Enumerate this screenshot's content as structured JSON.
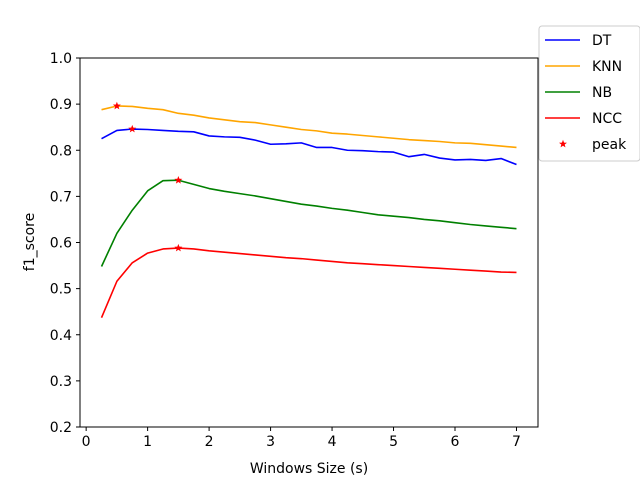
{
  "chart_data": {
    "type": "line",
    "title": "",
    "xlabel": "Windows Size (s)",
    "ylabel": "f1_score",
    "xlim": [
      -0.1,
      7.35
    ],
    "ylim": [
      0.2,
      1.0
    ],
    "xticks": [
      0,
      1,
      2,
      3,
      4,
      5,
      6,
      7
    ],
    "yticks": [
      0.2,
      0.3,
      0.4,
      0.5,
      0.6,
      0.7,
      0.8,
      0.9,
      1.0
    ],
    "xtick_labels": [
      "0",
      "1",
      "2",
      "3",
      "4",
      "5",
      "6",
      "7"
    ],
    "ytick_labels": [
      "0.2",
      "0.3",
      "0.4",
      "0.5",
      "0.6",
      "0.7",
      "0.8",
      "0.9",
      "1.0"
    ],
    "grid": false,
    "legend_position": "outside top-right",
    "x": [
      0.25,
      0.5,
      0.75,
      1.0,
      1.25,
      1.5,
      1.75,
      2.0,
      2.25,
      2.5,
      2.75,
      3.0,
      3.25,
      3.5,
      3.75,
      4.0,
      4.25,
      4.5,
      4.75,
      5.0,
      5.25,
      5.5,
      5.75,
      6.0,
      6.25,
      6.5,
      6.75,
      7.0
    ],
    "series": [
      {
        "name": "DT",
        "color": "#0000ff",
        "values": [
          0.825,
          0.843,
          0.846,
          0.845,
          0.843,
          0.841,
          0.84,
          0.831,
          0.829,
          0.828,
          0.822,
          0.813,
          0.814,
          0.816,
          0.806,
          0.806,
          0.8,
          0.799,
          0.797,
          0.796,
          0.786,
          0.791,
          0.783,
          0.779,
          0.78,
          0.778,
          0.782,
          0.769
        ]
      },
      {
        "name": "KNN",
        "color": "#ffa500",
        "values": [
          0.888,
          0.896,
          0.895,
          0.891,
          0.888,
          0.88,
          0.876,
          0.87,
          0.866,
          0.862,
          0.86,
          0.855,
          0.85,
          0.845,
          0.842,
          0.837,
          0.835,
          0.832,
          0.829,
          0.826,
          0.823,
          0.821,
          0.819,
          0.816,
          0.815,
          0.812,
          0.809,
          0.806
        ]
      },
      {
        "name": "NB",
        "color": "#008000",
        "values": [
          0.548,
          0.62,
          0.67,
          0.712,
          0.734,
          0.735,
          0.726,
          0.717,
          0.711,
          0.706,
          0.701,
          0.695,
          0.689,
          0.683,
          0.679,
          0.674,
          0.67,
          0.665,
          0.66,
          0.657,
          0.654,
          0.65,
          0.647,
          0.643,
          0.639,
          0.636,
          0.633,
          0.63
        ]
      },
      {
        "name": "NCC",
        "color": "#ff0000",
        "values": [
          0.437,
          0.516,
          0.556,
          0.577,
          0.586,
          0.588,
          0.586,
          0.582,
          0.579,
          0.576,
          0.573,
          0.57,
          0.567,
          0.565,
          0.562,
          0.559,
          0.556,
          0.554,
          0.552,
          0.55,
          0.548,
          0.546,
          0.544,
          0.542,
          0.54,
          0.538,
          0.536,
          0.535
        ]
      }
    ],
    "peaks": {
      "name": "peak",
      "color": "#ff0000",
      "marker": "star",
      "points": [
        {
          "x": 0.5,
          "y": 0.896
        },
        {
          "x": 0.75,
          "y": 0.846
        },
        {
          "x": 1.5,
          "y": 0.735
        },
        {
          "x": 1.5,
          "y": 0.588
        }
      ]
    }
  }
}
